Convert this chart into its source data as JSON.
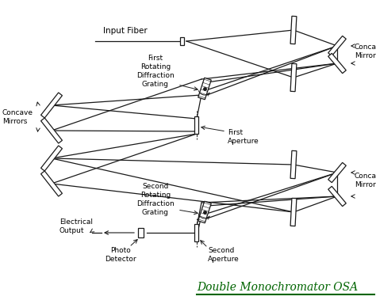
{
  "title": "Double Monochromator OSA",
  "title_color": "#006400",
  "underline_color": "#006400",
  "bg_color": "#ffffff",
  "line_color": "#1a1a1a",
  "figsize": [
    4.74,
    3.79
  ],
  "dpi": 100,
  "labels": {
    "input_fiber": "Input Fiber",
    "first_grating": "First\nRotating\nDiffraction\nGrating",
    "first_aperture": "First\nAperture",
    "concave_left": "Concave\nMirrors",
    "concave_right_top": "Concave\nMirrors",
    "second_grating": "Second\nRotating\nDiffraction\nGrating",
    "second_aperture": "Second\nAperture",
    "electrical_output": "Electrical\nOutput",
    "photo_detector": "Photo\nDetector",
    "concave_right_bot": "Concave\nMirrors"
  }
}
